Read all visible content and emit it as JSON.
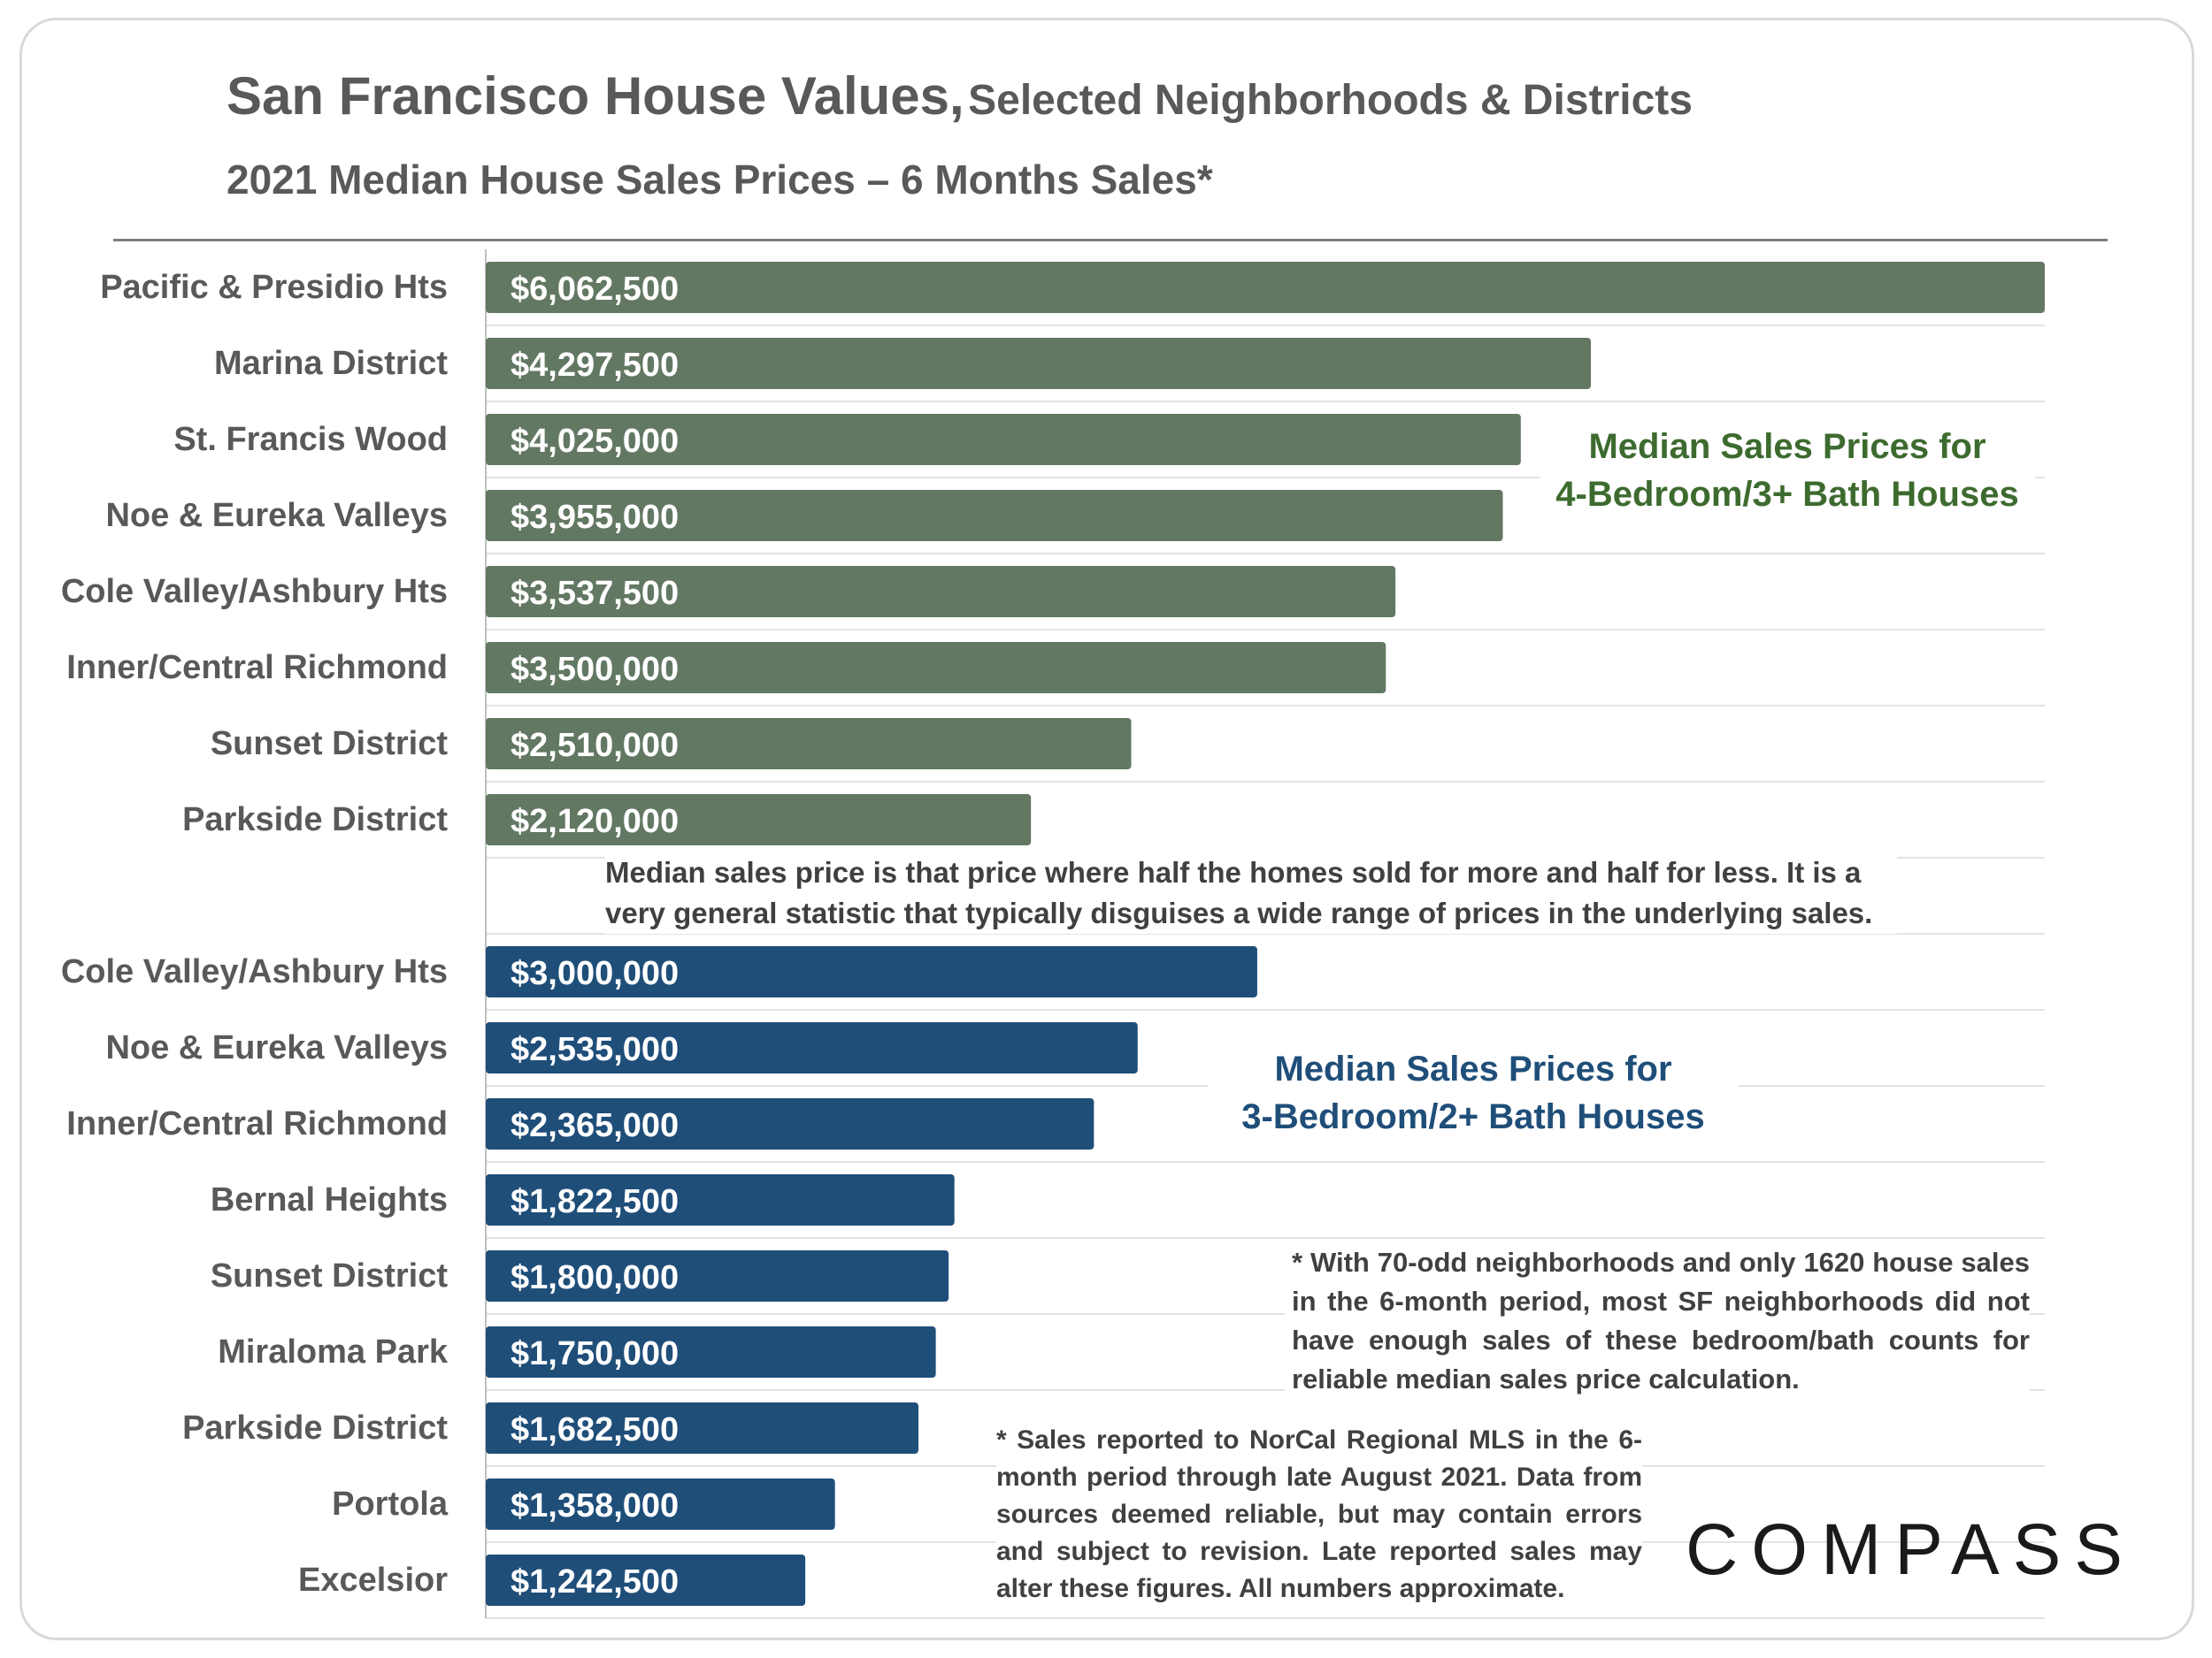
{
  "header": {
    "title_main": "San Francisco House Values,",
    "title_sub": "Selected Neighborhoods & Districts",
    "subtitle": "2021 Median House Sales Prices – 6 Months Sales*"
  },
  "chart_data": {
    "type": "bar",
    "orientation": "horizontal",
    "title": "San Francisco House Values, Selected Neighborhoods & Districts",
    "subtitle": "2021 Median House Sales Prices – 6 Months Sales*",
    "xlim": [
      0,
      6062500
    ],
    "grid": true,
    "series": [
      {
        "name": "Median Sales Prices for 4-Bedroom/3+ Bath Houses",
        "color": "#637862",
        "categories": [
          "Pacific & Presidio Hts",
          "Marina District",
          "St. Francis Wood",
          "Noe & Eureka Valleys",
          "Cole Valley/Ashbury Hts",
          "Inner/Central Richmond",
          "Sunset District",
          "Parkside District"
        ],
        "values": [
          6062500,
          4297500,
          4025000,
          3955000,
          3537500,
          3500000,
          2510000,
          2120000
        ],
        "labels": [
          "$6,062,500",
          "$4,297,500",
          "$4,025,000",
          "$3,955,000",
          "$3,537,500",
          "$3,500,000",
          "$2,510,000",
          "$2,120,000"
        ]
      },
      {
        "name": "Median Sales Prices for 3-Bedroom/2+ Bath Houses",
        "color": "#1f4e79",
        "categories": [
          "Cole Valley/Ashbury Hts",
          "Noe & Eureka Valleys",
          "Inner/Central Richmond",
          "Bernal Heights",
          "Sunset District",
          "Miraloma Park",
          "Parkside District",
          "Portola",
          "Excelsior"
        ],
        "values": [
          3000000,
          2535000,
          2365000,
          1822500,
          1800000,
          1750000,
          1682500,
          1358000,
          1242500
        ],
        "labels": [
          "$3,000,000",
          "$2,535,000",
          "$2,365,000",
          "$1,822,500",
          "$1,800,000",
          "$1,750,000",
          "$1,682,500",
          "$1,358,000",
          "$1,242,500"
        ]
      }
    ]
  },
  "legend": {
    "four_br_line1": "Median Sales Prices for",
    "four_br_line2": "4-Bedroom/3+ Bath Houses",
    "three_br_line1": "Median Sales Prices for",
    "three_br_line2": "3-Bedroom/2+ Bath Houses"
  },
  "notes": {
    "median_definition": "Median sales price is that price where half the homes sold for more and half for less. It is a very general statistic that typically disguises a wide range of prices in the underlying sales.",
    "neighborhoods": "* With 70-odd neighborhoods and only 1620 house sales in the 6-month period, most SF neighborhoods did not have enough sales of these bedroom/bath counts for reliable median sales price calculation.",
    "source": "* Sales reported to NorCal Regional MLS in the 6-month period through late August 2021. Data from sources deemed reliable, but may contain errors and subject to revision. Late reported sales may alter these figures. All numbers approximate."
  },
  "logo": {
    "text": "COMPASS"
  }
}
